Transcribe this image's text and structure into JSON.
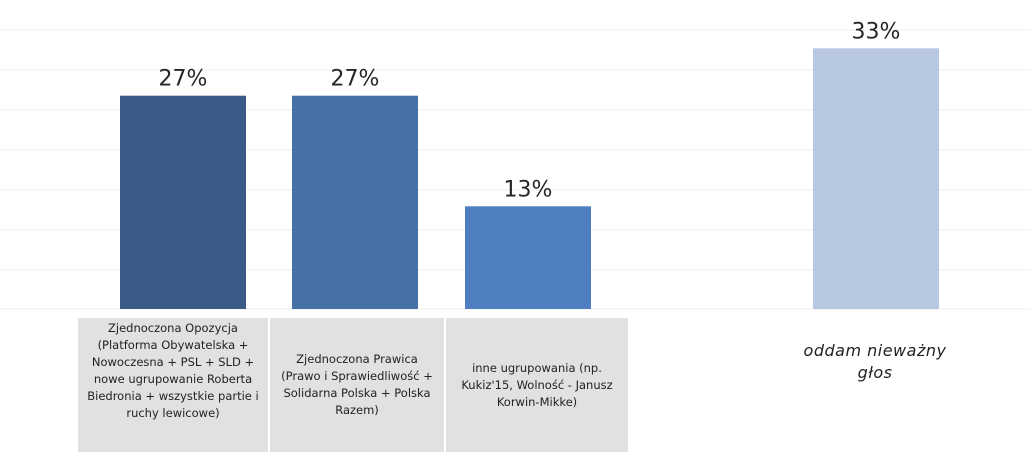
{
  "chart_data": {
    "type": "bar",
    "title": "",
    "xlabel": "",
    "ylabel": "",
    "ylim": [
      0,
      35
    ],
    "grid": true,
    "categories": [
      "Zjednoczona  Opozycja (Platforma Obywatelska + Nowoczesna  + PSL + SLD + nowe ugrupowanie Roberta Biedronia + wszystkie partie i ruchy lewicowe)",
      "Zjednoczona  Prawica (Prawo i Sprawiedliwość + Solidarna Polska + Polska Razem)",
      "inne ugrupowania (np. Kukiz'15, Wolność - Janusz Korwin-Mikke)",
      "oddam nieważny głos"
    ],
    "values": [
      27,
      27,
      13,
      33
    ],
    "value_labels": [
      "27%",
      "27%",
      "13%",
      "33%"
    ],
    "colors": [
      "#3b5a86",
      "#4671a5",
      "#4f7fc0",
      "#b8c8e0"
    ]
  }
}
